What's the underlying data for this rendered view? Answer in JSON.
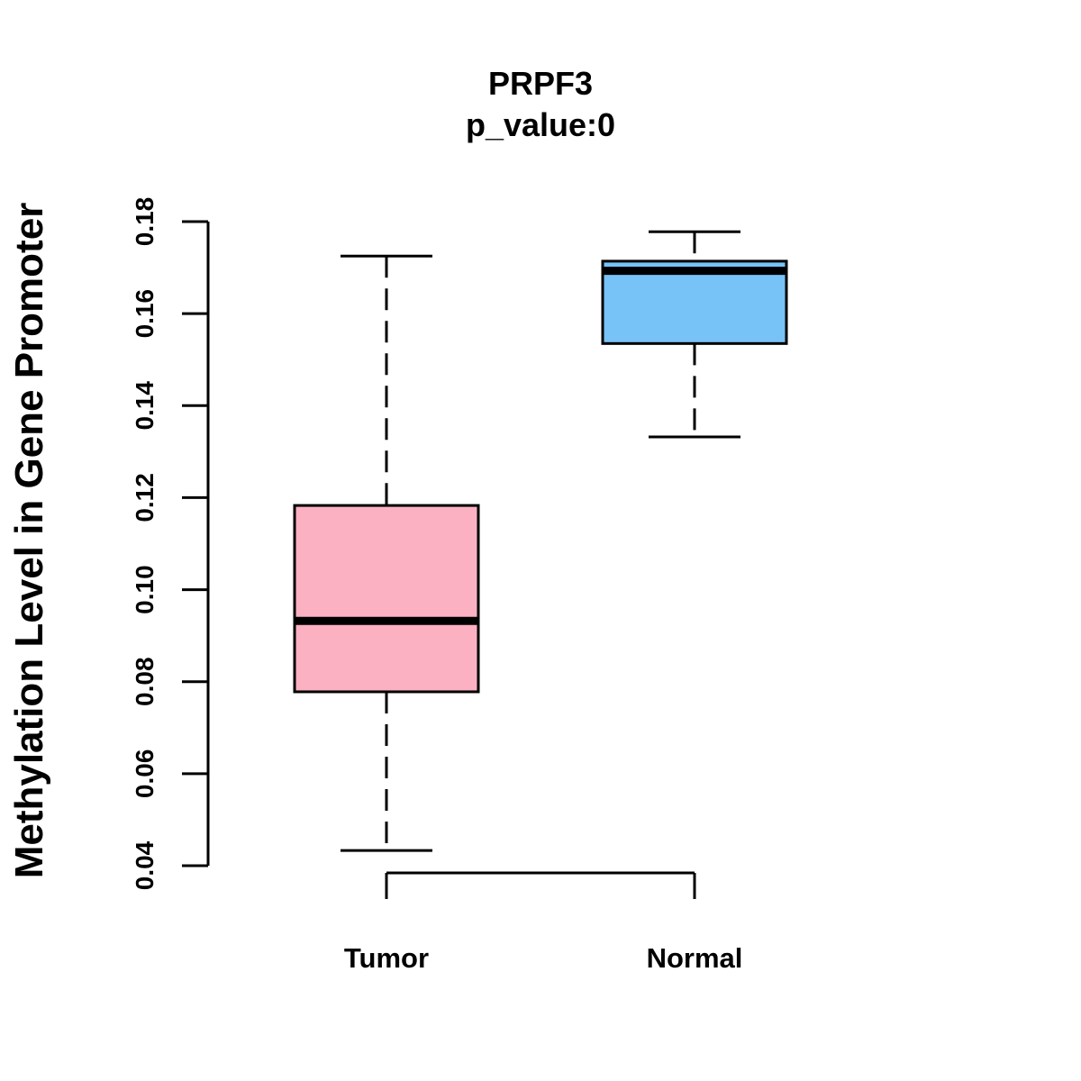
{
  "chart_data": {
    "type": "boxplot",
    "title": "PRPF3",
    "subtitle": "p_value:0",
    "xlabel": "",
    "ylabel": "Methylation Level in Gene Promoter",
    "ylim": [
      0.04,
      0.18
    ],
    "yticks": [
      0.04,
      0.06,
      0.08,
      0.1,
      0.12,
      0.14,
      0.16,
      0.18
    ],
    "ytick_labels": [
      "0.04",
      "0.06",
      "0.08",
      "0.10",
      "0.12",
      "0.14",
      "0.16",
      "0.18"
    ],
    "categories": [
      "Tumor",
      "Normal"
    ],
    "boxes": [
      {
        "name": "Tumor",
        "min": 0.0433,
        "q1": 0.0778,
        "median": 0.0932,
        "q3": 0.1183,
        "max": 0.1725,
        "color": "#FBB1C2"
      },
      {
        "name": "Normal",
        "min": 0.1332,
        "q1": 0.1535,
        "median": 0.1693,
        "q3": 0.1714,
        "max": 0.1778,
        "color": "#77C2F7"
      }
    ],
    "grid": false,
    "legend": "none"
  }
}
